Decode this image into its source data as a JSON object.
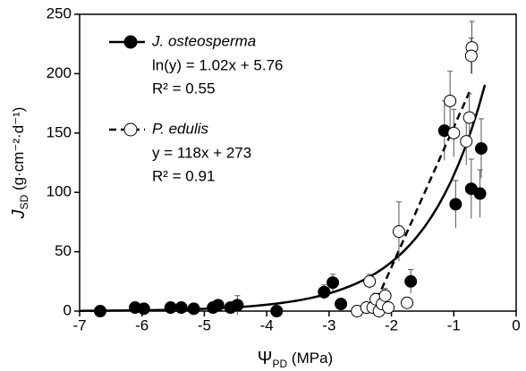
{
  "chart_data": {
    "type": "scatter",
    "x_label": {
      "main": "Ψ",
      "sub": "PD",
      "rest": " (MPa)"
    },
    "y_label": {
      "main": "J",
      "sub": "SD",
      "rest": " (g·cm⁻²·d⁻¹)"
    },
    "xlim": [
      -7,
      0
    ],
    "xticks": [
      -7,
      -6,
      -5,
      -4,
      -3,
      -2,
      -1,
      0
    ],
    "ylim": [
      0,
      250
    ],
    "yticks": [
      0,
      50,
      100,
      150,
      200,
      250
    ],
    "series": [
      {
        "name": "J. osteosperma",
        "color": "#000000",
        "filled": true,
        "equation": "ln(y) = 1.02x + 5.76",
        "r2": "R² = 0.55",
        "fit": {
          "log": true,
          "slope": 1.02,
          "intercept": 5.76,
          "x": [
            -7,
            -0.5
          ],
          "dash": false
        },
        "x": [
          -6.67,
          -6.11,
          -5.97,
          -5.54,
          -5.37,
          -5.17,
          -4.86,
          -4.78,
          -4.58,
          -4.47,
          -3.84,
          -3.08,
          -2.94,
          -2.81,
          -1.69,
          -1.15,
          -0.97,
          -0.72,
          -0.58,
          -0.56
        ],
        "values": [
          0,
          3,
          2,
          3,
          3,
          2,
          3,
          5,
          3,
          5,
          0,
          16,
          24,
          6,
          25,
          152,
          90,
          103,
          99,
          137
        ],
        "yerr": [
          1,
          2,
          1,
          2,
          1,
          1,
          2,
          2,
          2,
          8,
          1,
          6,
          7,
          3,
          10,
          25,
          20,
          25,
          20,
          25
        ]
      },
      {
        "name": "P. edulis",
        "color": "#000000",
        "filled": false,
        "equation": "y = 118x + 273",
        "r2": "R² = 0.91",
        "fit": {
          "log": false,
          "slope": 118,
          "intercept": 273,
          "x": [
            -2.31,
            -0.75
          ],
          "dash": true
        },
        "x": [
          -2.55,
          -2.4,
          -2.35,
          -2.3,
          -2.25,
          -2.2,
          -2.15,
          -2.1,
          -2.05,
          -1.88,
          -1.75,
          -1.06,
          -1.0,
          -0.8,
          -0.75,
          -0.71,
          -0.72
        ],
        "values": [
          0,
          3,
          25,
          3,
          10,
          0,
          6,
          13,
          3,
          67,
          7,
          177,
          150,
          143,
          163,
          222,
          215
        ],
        "yerr": [
          2,
          3,
          6,
          3,
          5,
          2,
          4,
          6,
          3,
          25,
          4,
          25,
          20,
          20,
          20,
          22,
          15
        ]
      }
    ]
  }
}
